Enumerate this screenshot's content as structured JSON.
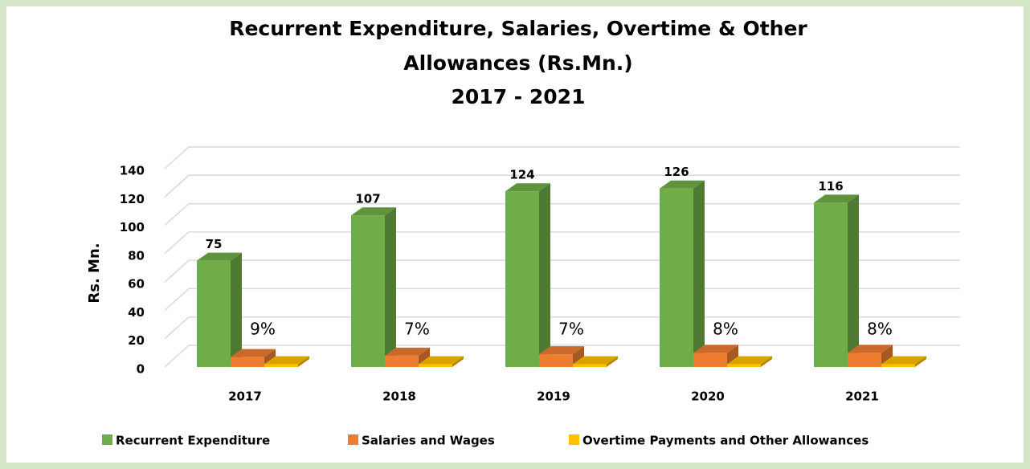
{
  "chart_data": {
    "type": "bar3d",
    "title_lines": [
      "Recurrent Expenditure, Salaries, Overtime & Other",
      "Allowances (Rs.Mn.)",
      "2017 - 2021"
    ],
    "y_label": "Rs. Mn.",
    "categories": [
      "2017",
      "2018",
      "2019",
      "2020",
      "2021"
    ],
    "series": [
      {
        "name": "Recurrent Expenditure",
        "color": "#70ad47",
        "values": [
          75,
          107,
          124,
          126,
          116
        ]
      },
      {
        "name": "Salaries and Wages",
        "color": "#ed7d31",
        "values": [
          7,
          8,
          9,
          10,
          10
        ]
      },
      {
        "name": "Overtime Payments and Other Allowances",
        "color": "#ffc000",
        "values": [
          2,
          2,
          2,
          2,
          2
        ]
      }
    ],
    "annotations": [
      "9%",
      "7%",
      "7%",
      "8%",
      "8%"
    ],
    "ylim": [
      0,
      140
    ],
    "yticks": [
      0,
      20,
      40,
      60,
      80,
      100,
      120,
      140
    ],
    "grid": true,
    "legend": "bottom"
  }
}
